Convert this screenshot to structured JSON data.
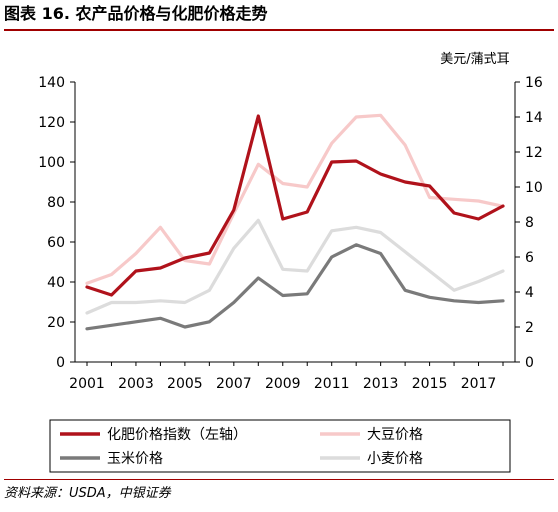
{
  "page": {
    "title": "图表 16. 农产品价格与化肥价格走势",
    "source": "资料来源：USDA，中银证券"
  },
  "chart_data": {
    "type": "line",
    "x": [
      2001,
      2002,
      2003,
      2004,
      2005,
      2006,
      2007,
      2008,
      2009,
      2010,
      2011,
      2012,
      2013,
      2014,
      2015,
      2016,
      2017,
      2018
    ],
    "x_ticks": [
      "2001",
      "2003",
      "2005",
      "2007",
      "2009",
      "2011",
      "2013",
      "2015",
      "2017"
    ],
    "y_left": {
      "ylim": [
        0,
        140
      ],
      "ticks": [
        "0",
        "20",
        "40",
        "60",
        "80",
        "100",
        "120",
        "140"
      ]
    },
    "y_right": {
      "ylim": [
        0,
        16
      ],
      "ticks": [
        "0",
        "2",
        "4",
        "6",
        "8",
        "10",
        "12",
        "14",
        "16"
      ],
      "unit": "美元/蒲式耳"
    },
    "grid": false,
    "legend_position": "bottom",
    "series": [
      {
        "name": "化肥价格指数（左轴）",
        "axis": "left",
        "color": "#b0121b",
        "values": [
          37.5,
          33.5,
          45.5,
          47,
          52,
          54.5,
          76,
          123,
          71.5,
          75,
          100,
          100.5,
          94,
          90,
          88,
          74.5,
          71.5,
          78
        ]
      },
      {
        "name": "大豆价格",
        "axis": "right",
        "color": "#f7c9c9",
        "values": [
          4.5,
          5,
          6.2,
          7.7,
          5.8,
          5.6,
          8.5,
          11.3,
          10.2,
          10,
          12.5,
          14,
          14.1,
          12.4,
          9.4,
          9.3,
          9.2,
          8.9
        ]
      },
      {
        "name": "玉米价格",
        "axis": "right",
        "color": "#7a7a7a",
        "values": [
          1.9,
          2.1,
          2.3,
          2.5,
          2,
          2.3,
          3.4,
          4.8,
          3.8,
          3.9,
          6,
          6.7,
          6.2,
          4.1,
          3.7,
          3.5,
          3.4,
          3.5
        ]
      },
      {
        "name": "小麦价格",
        "axis": "right",
        "color": "#dcdcdc",
        "values": [
          2.8,
          3.4,
          3.4,
          3.5,
          3.4,
          4.1,
          6.5,
          8.1,
          5.3,
          5.2,
          7.5,
          7.7,
          7.4,
          6.3,
          5.2,
          4.1,
          4.6,
          5.2
        ]
      }
    ]
  }
}
